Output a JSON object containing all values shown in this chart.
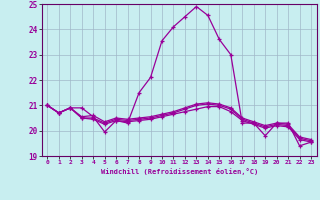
{
  "background_color": "#c8eef0",
  "grid_color": "#a0b8c8",
  "line_color": "#990099",
  "border_color": "#660066",
  "xlabel": "Windchill (Refroidissement éolien,°C)",
  "xlim": [
    -0.5,
    23.5
  ],
  "ylim": [
    19,
    25
  ],
  "yticks": [
    19,
    20,
    21,
    22,
    23,
    24,
    25
  ],
  "xticks": [
    0,
    1,
    2,
    3,
    4,
    5,
    6,
    7,
    8,
    9,
    10,
    11,
    12,
    13,
    14,
    15,
    16,
    17,
    18,
    19,
    20,
    21,
    22,
    23
  ],
  "curves": [
    {
      "x": [
        0,
        1,
        2,
        3,
        4,
        5,
        6,
        7,
        8,
        9,
        10,
        11,
        12,
        13,
        14,
        15,
        16,
        17,
        18,
        19,
        20,
        21,
        22,
        23
      ],
      "y": [
        21.0,
        20.7,
        20.9,
        20.9,
        20.55,
        19.95,
        20.4,
        20.3,
        21.5,
        22.1,
        23.55,
        24.1,
        24.5,
        24.9,
        24.55,
        23.6,
        23.0,
        20.3,
        20.3,
        19.8,
        20.3,
        20.3,
        19.4,
        19.55
      ]
    },
    {
      "x": [
        0,
        1,
        2,
        3,
        4,
        5,
        6,
        7,
        8,
        9,
        10,
        11,
        12,
        13,
        14,
        15,
        16,
        17,
        18,
        19,
        20,
        21,
        22,
        23
      ],
      "y": [
        21.0,
        20.7,
        20.9,
        20.5,
        20.45,
        20.25,
        20.4,
        20.35,
        20.4,
        20.45,
        20.55,
        20.65,
        20.75,
        20.85,
        20.95,
        20.95,
        20.75,
        20.4,
        20.25,
        20.1,
        20.2,
        20.15,
        19.65,
        19.55
      ]
    },
    {
      "x": [
        0,
        1,
        2,
        3,
        4,
        5,
        6,
        7,
        8,
        9,
        10,
        11,
        12,
        13,
        14,
        15,
        16,
        17,
        18,
        19,
        20,
        21,
        22,
        23
      ],
      "y": [
        21.0,
        20.7,
        20.9,
        20.5,
        20.5,
        20.3,
        20.45,
        20.4,
        20.45,
        20.5,
        20.6,
        20.7,
        20.85,
        21.0,
        21.05,
        21.0,
        20.85,
        20.45,
        20.3,
        20.15,
        20.25,
        20.2,
        19.7,
        19.6
      ]
    },
    {
      "x": [
        0,
        1,
        2,
        3,
        4,
        5,
        6,
        7,
        8,
        9,
        10,
        11,
        12,
        13,
        14,
        15,
        16,
        17,
        18,
        19,
        20,
        21,
        22,
        23
      ],
      "y": [
        21.0,
        20.7,
        20.9,
        20.55,
        20.6,
        20.35,
        20.5,
        20.45,
        20.5,
        20.55,
        20.65,
        20.75,
        20.9,
        21.05,
        21.1,
        21.05,
        20.9,
        20.5,
        20.35,
        20.2,
        20.3,
        20.25,
        19.75,
        19.65
      ]
    }
  ]
}
